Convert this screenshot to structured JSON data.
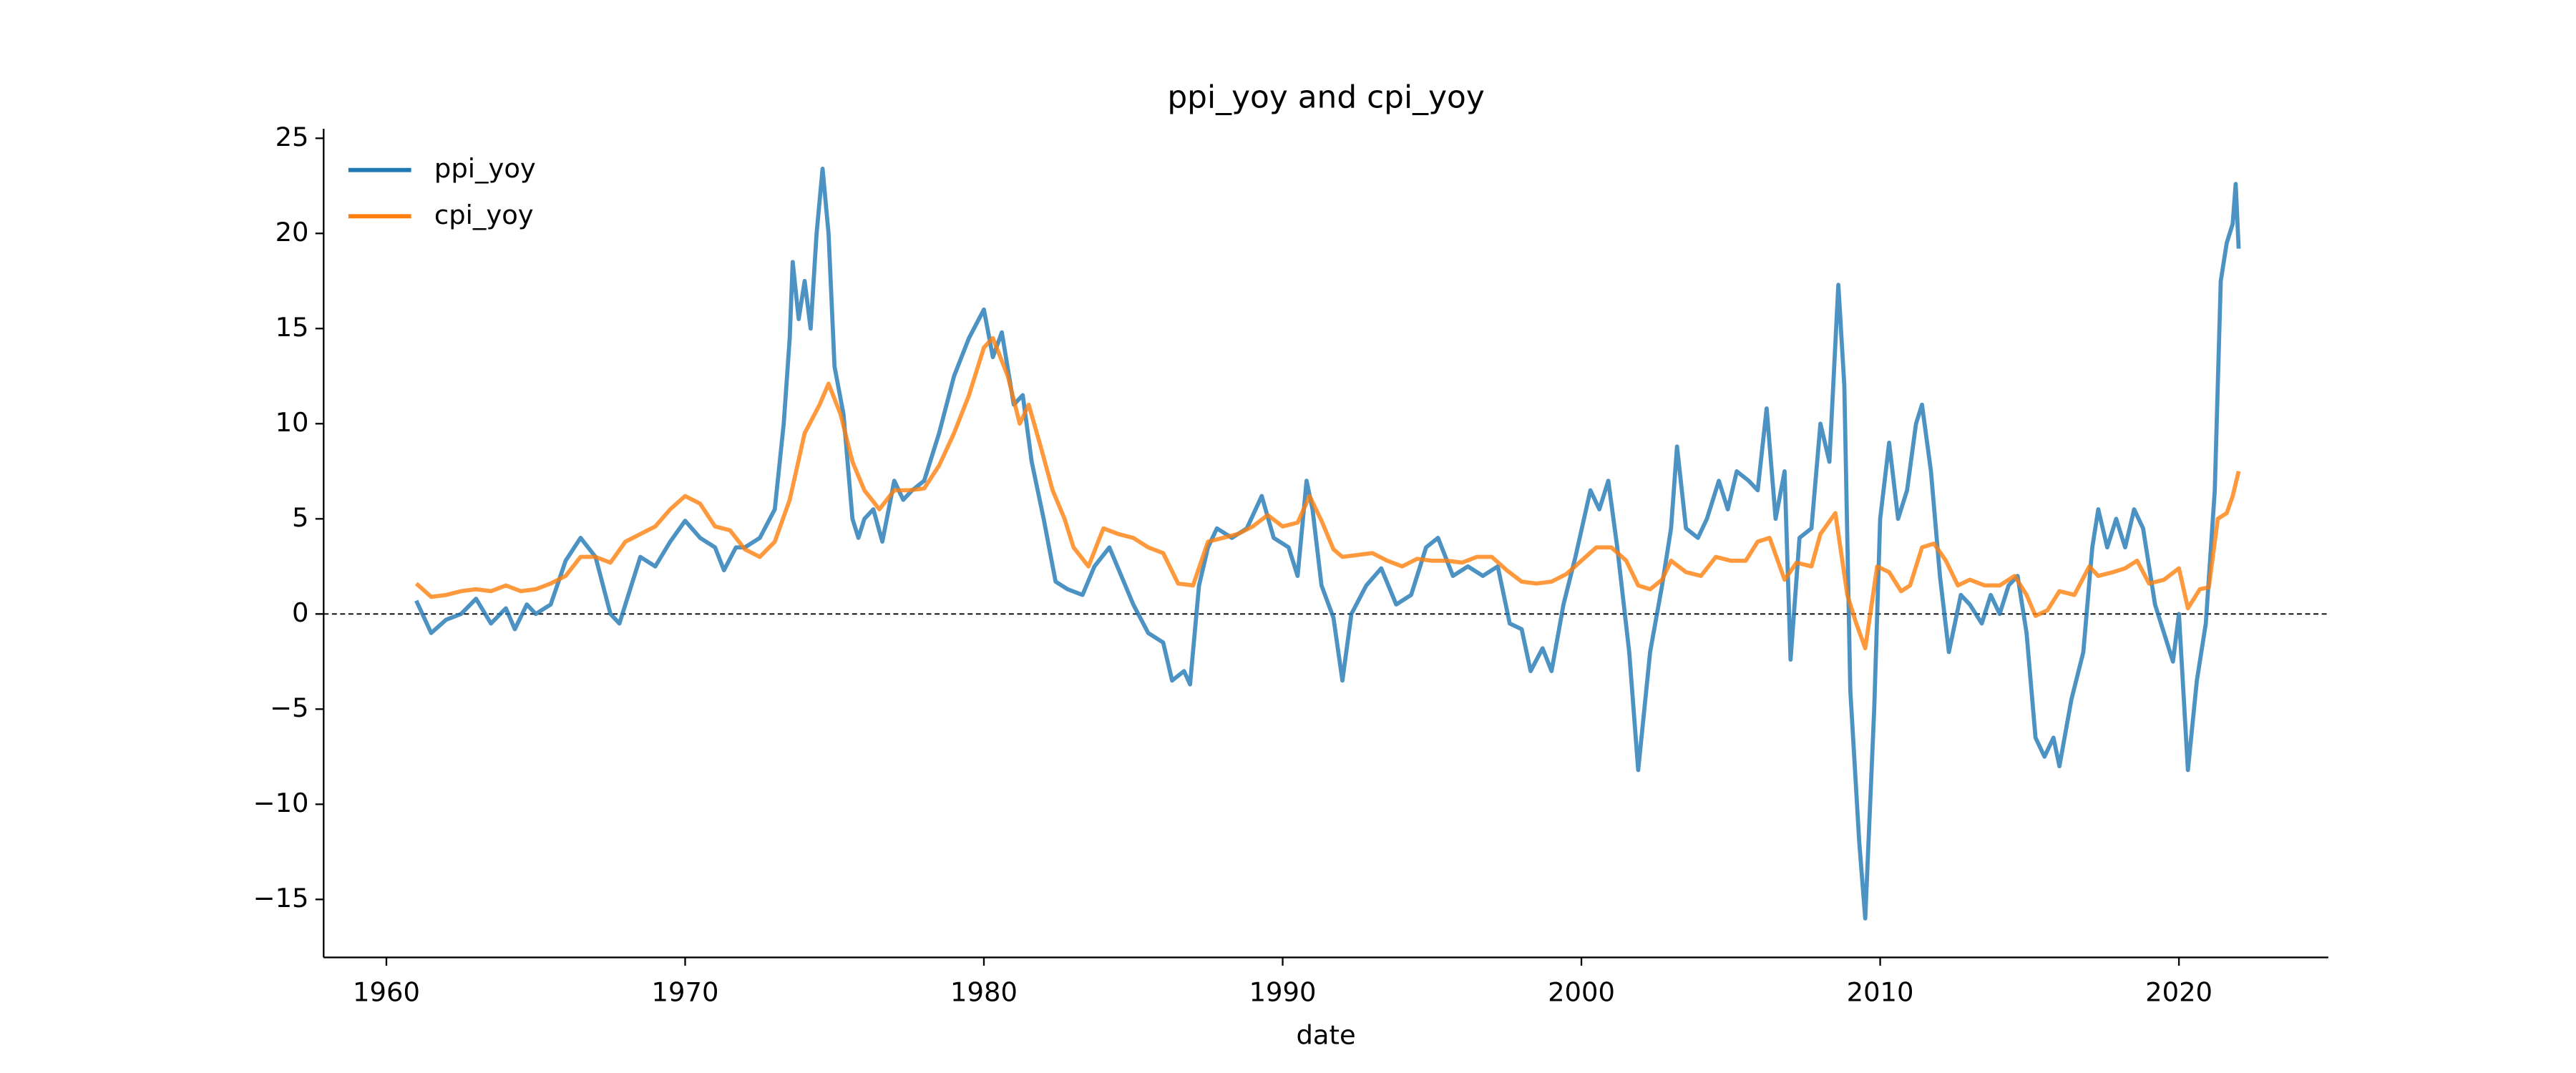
{
  "chart_data": {
    "type": "line",
    "title": "ppi_yoy and cpi_yoy",
    "x_label": "date",
    "xlim": [
      1957.9,
      2025.0
    ],
    "ylim": [
      -18.05,
      25.5
    ],
    "xticks": [
      1960,
      1970,
      1980,
      1990,
      2000,
      2010,
      2020
    ],
    "yticks": [
      {
        "value": -15,
        "label": "−15"
      },
      {
        "value": -10,
        "label": "−10"
      },
      {
        "value": -5,
        "label": "−5"
      },
      0,
      5,
      10,
      15,
      20,
      25
    ],
    "hline": 0,
    "legend": "upper left",
    "grid": false,
    "series": [
      {
        "name": "ppi_yoy",
        "color": "#1f77b4",
        "x": [
          1961.0,
          1961.5,
          1962.0,
          1962.5,
          1963.0,
          1963.5,
          1964.0,
          1964.3,
          1964.7,
          1965.0,
          1965.5,
          1966.0,
          1966.5,
          1967.0,
          1967.5,
          1967.8,
          1968.2,
          1968.5,
          1969.0,
          1969.5,
          1970.0,
          1970.5,
          1971.0,
          1971.3,
          1971.7,
          1972.0,
          1972.5,
          1973.0,
          1973.3,
          1973.5,
          1973.6,
          1973.8,
          1974.0,
          1974.2,
          1974.4,
          1974.6,
          1974.8,
          1975.0,
          1975.3,
          1975.6,
          1975.8,
          1976.0,
          1976.3,
          1976.6,
          1977.0,
          1977.3,
          1977.6,
          1978.0,
          1978.5,
          1979.0,
          1979.5,
          1980.0,
          1980.3,
          1980.6,
          1981.0,
          1981.3,
          1981.6,
          1982.0,
          1982.4,
          1982.8,
          1983.3,
          1983.7,
          1984.2,
          1984.6,
          1985.0,
          1985.5,
          1986.0,
          1986.3,
          1986.7,
          1986.9,
          1987.2,
          1987.5,
          1987.8,
          1988.3,
          1988.8,
          1989.3,
          1989.7,
          1990.2,
          1990.5,
          1990.8,
          1991.0,
          1991.3,
          1991.7,
          1992.0,
          1992.3,
          1992.8,
          1993.3,
          1993.8,
          1994.3,
          1994.8,
          1995.2,
          1995.7,
          1996.2,
          1996.7,
          1997.2,
          1997.6,
          1998.0,
          1998.3,
          1998.7,
          1999.0,
          1999.4,
          1999.8,
          2000.3,
          2000.6,
          2000.9,
          2001.2,
          2001.6,
          2001.9,
          2002.3,
          2002.7,
          2003.0,
          2003.2,
          2003.5,
          2003.9,
          2004.2,
          2004.6,
          2004.9,
          2005.2,
          2005.6,
          2005.9,
          2006.2,
          2006.5,
          2006.8,
          2007.0,
          2007.3,
          2007.7,
          2008.0,
          2008.3,
          2008.6,
          2008.8,
          2009.0,
          2009.3,
          2009.5,
          2009.8,
          2010.0,
          2010.3,
          2010.6,
          2010.9,
          2011.2,
          2011.4,
          2011.7,
          2012.0,
          2012.3,
          2012.7,
          2013.0,
          2013.4,
          2013.7,
          2014.0,
          2014.3,
          2014.6,
          2014.9,
          2015.2,
          2015.5,
          2015.8,
          2016.0,
          2016.4,
          2016.8,
          2017.1,
          2017.3,
          2017.6,
          2017.9,
          2018.2,
          2018.5,
          2018.8,
          2019.2,
          2019.5,
          2019.8,
          2020.0,
          2020.3,
          2020.6,
          2020.9,
          2021.2,
          2021.4,
          2021.6,
          2021.8,
          2021.9,
          2022.0
        ],
        "values": [
          0.7,
          -1.0,
          -0.3,
          0.0,
          0.8,
          -0.5,
          0.3,
          -0.8,
          0.5,
          0.0,
          0.5,
          2.8,
          4.0,
          3.0,
          0.0,
          -0.5,
          1.5,
          3.0,
          2.5,
          3.8,
          4.9,
          4.0,
          3.5,
          2.3,
          3.5,
          3.5,
          4.0,
          5.5,
          10.0,
          14.5,
          18.5,
          15.5,
          17.5,
          15.0,
          20.0,
          23.4,
          20.0,
          13.0,
          10.5,
          5.0,
          4.0,
          5.0,
          5.5,
          3.8,
          7.0,
          6.0,
          6.5,
          7.0,
          9.5,
          12.5,
          14.5,
          16.0,
          13.5,
          14.8,
          11.0,
          11.5,
          8.0,
          5.0,
          1.7,
          1.3,
          1.0,
          2.5,
          3.5,
          2.0,
          0.5,
          -1.0,
          -1.5,
          -3.5,
          -3.0,
          -3.7,
          1.5,
          3.5,
          4.5,
          4.0,
          4.5,
          6.2,
          4.0,
          3.5,
          2.0,
          7.0,
          5.5,
          1.5,
          -0.2,
          -3.5,
          0.0,
          1.5,
          2.4,
          0.5,
          1.0,
          3.5,
          4.0,
          2.0,
          2.5,
          2.0,
          2.5,
          -0.5,
          -0.8,
          -3.0,
          -1.8,
          -3.0,
          0.5,
          3.0,
          6.5,
          5.5,
          7.0,
          3.5,
          -2.0,
          -8.2,
          -2.0,
          1.5,
          4.5,
          8.8,
          4.5,
          4.0,
          5.0,
          7.0,
          5.5,
          7.5,
          7.0,
          6.5,
          10.8,
          5.0,
          7.5,
          -2.4,
          4.0,
          4.5,
          10.0,
          8.0,
          17.3,
          12.0,
          -4.0,
          -12.0,
          -16.0,
          -5.0,
          5.0,
          9.0,
          5.0,
          6.5,
          10.0,
          11.0,
          7.5,
          2.0,
          -2.0,
          1.0,
          0.5,
          -0.5,
          1.0,
          0.0,
          1.5,
          2.0,
          -1.0,
          -6.5,
          -7.5,
          -6.5,
          -8.0,
          -4.5,
          -2.0,
          3.5,
          5.5,
          3.5,
          5.0,
          3.5,
          5.5,
          4.5,
          0.5,
          -1.0,
          -2.5,
          0.0,
          -8.2,
          -3.5,
          -0.5,
          6.5,
          17.5,
          19.5,
          20.5,
          22.6,
          19.2
        ]
      },
      {
        "name": "cpi_yoy",
        "color": "#ff7f0e",
        "x": [
          1961.0,
          1961.5,
          1962.0,
          1962.5,
          1963.0,
          1963.5,
          1964.0,
          1964.5,
          1965.0,
          1965.5,
          1966.0,
          1966.5,
          1967.0,
          1967.5,
          1968.0,
          1968.5,
          1969.0,
          1969.5,
          1970.0,
          1970.5,
          1971.0,
          1971.5,
          1972.0,
          1972.5,
          1973.0,
          1973.5,
          1974.0,
          1974.5,
          1974.8,
          1975.2,
          1975.6,
          1976.0,
          1976.5,
          1977.0,
          1977.5,
          1978.0,
          1978.5,
          1979.0,
          1979.5,
          1980.0,
          1980.3,
          1980.8,
          1981.2,
          1981.5,
          1981.9,
          1982.3,
          1982.7,
          1983.0,
          1983.5,
          1984.0,
          1984.5,
          1985.0,
          1985.5,
          1986.0,
          1986.5,
          1987.0,
          1987.5,
          1988.0,
          1988.5,
          1989.0,
          1989.5,
          1990.0,
          1990.5,
          1990.9,
          1991.3,
          1991.7,
          1992.0,
          1992.5,
          1993.0,
          1993.5,
          1994.0,
          1994.5,
          1995.0,
          1995.5,
          1996.0,
          1996.5,
          1997.0,
          1997.5,
          1998.0,
          1998.5,
          1999.0,
          1999.5,
          2000.0,
          2000.5,
          2001.0,
          2001.5,
          2001.9,
          2002.3,
          2002.7,
          2003.0,
          2003.5,
          2004.0,
          2004.5,
          2005.0,
          2005.5,
          2005.9,
          2006.3,
          2006.8,
          2007.2,
          2007.7,
          2008.0,
          2008.5,
          2008.9,
          2009.2,
          2009.5,
          2009.9,
          2010.3,
          2010.7,
          2011.0,
          2011.4,
          2011.8,
          2012.2,
          2012.6,
          2013.0,
          2013.5,
          2014.0,
          2014.5,
          2014.9,
          2015.2,
          2015.6,
          2016.0,
          2016.5,
          2017.0,
          2017.3,
          2017.8,
          2018.2,
          2018.6,
          2019.0,
          2019.5,
          2020.0,
          2020.3,
          2020.7,
          2021.0,
          2021.3,
          2021.6,
          2021.8,
          2022.0
        ],
        "values": [
          1.6,
          0.9,
          1.0,
          1.2,
          1.3,
          1.2,
          1.5,
          1.2,
          1.3,
          1.6,
          2.0,
          3.0,
          3.0,
          2.7,
          3.8,
          4.2,
          4.6,
          5.5,
          6.2,
          5.8,
          4.6,
          4.4,
          3.4,
          3.0,
          3.8,
          6.0,
          9.5,
          11.0,
          12.1,
          10.5,
          8.0,
          6.5,
          5.5,
          6.5,
          6.5,
          6.6,
          7.8,
          9.5,
          11.5,
          14.0,
          14.5,
          12.5,
          10.0,
          11.0,
          8.8,
          6.5,
          5.0,
          3.5,
          2.5,
          4.5,
          4.2,
          4.0,
          3.5,
          3.2,
          1.6,
          1.5,
          3.8,
          4.0,
          4.2,
          4.6,
          5.2,
          4.6,
          4.8,
          6.2,
          4.9,
          3.4,
          3.0,
          3.1,
          3.2,
          2.8,
          2.5,
          2.9,
          2.8,
          2.8,
          2.7,
          3.0,
          3.0,
          2.3,
          1.7,
          1.6,
          1.7,
          2.1,
          2.8,
          3.5,
          3.5,
          2.8,
          1.5,
          1.3,
          1.8,
          2.8,
          2.2,
          2.0,
          3.0,
          2.8,
          2.8,
          3.8,
          4.0,
          1.8,
          2.7,
          2.5,
          4.2,
          5.3,
          1.0,
          -0.5,
          -1.8,
          2.5,
          2.2,
          1.2,
          1.5,
          3.5,
          3.7,
          2.8,
          1.5,
          1.8,
          1.5,
          1.5,
          2.0,
          1.0,
          -0.1,
          0.2,
          1.2,
          1.0,
          2.5,
          2.0,
          2.2,
          2.4,
          2.8,
          1.6,
          1.8,
          2.4,
          0.3,
          1.3,
          1.4,
          5.0,
          5.3,
          6.2,
          7.5
        ]
      }
    ]
  }
}
